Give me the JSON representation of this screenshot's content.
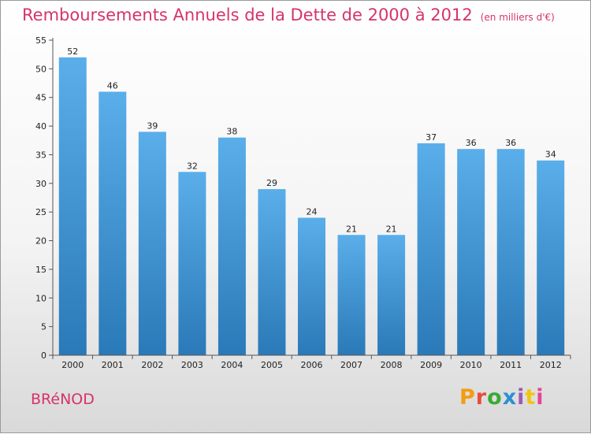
{
  "chart_data": {
    "type": "bar",
    "title": "Remboursements Annuels de la Dette de 2000 à 2012",
    "unit_label": "(en milliers d'€)",
    "categories": [
      "2000",
      "2001",
      "2002",
      "2003",
      "2004",
      "2005",
      "2006",
      "2007",
      "2008",
      "2009",
      "2010",
      "2011",
      "2012"
    ],
    "values": [
      52,
      46,
      39,
      32,
      38,
      29,
      24,
      21,
      21,
      37,
      36,
      36,
      34
    ],
    "ylim": [
      0,
      55
    ],
    "yticks": [
      0,
      5,
      10,
      15,
      20,
      25,
      30,
      35,
      40,
      45,
      50,
      55
    ],
    "grid": false,
    "xlabel": "",
    "ylabel": ""
  },
  "footer": {
    "commune": "BRéNOD",
    "brand": "Proxiti",
    "brand_colors": [
      "#f39c12",
      "#e74c3c",
      "#3aaa35",
      "#2b8fd6",
      "#9b59b6",
      "#f1c40f",
      "#e84393"
    ]
  },
  "colors": {
    "title": "#d6336c",
    "bar_top": "#5aaee9",
    "bar_bottom": "#2a79b8",
    "axis": "#555555"
  }
}
